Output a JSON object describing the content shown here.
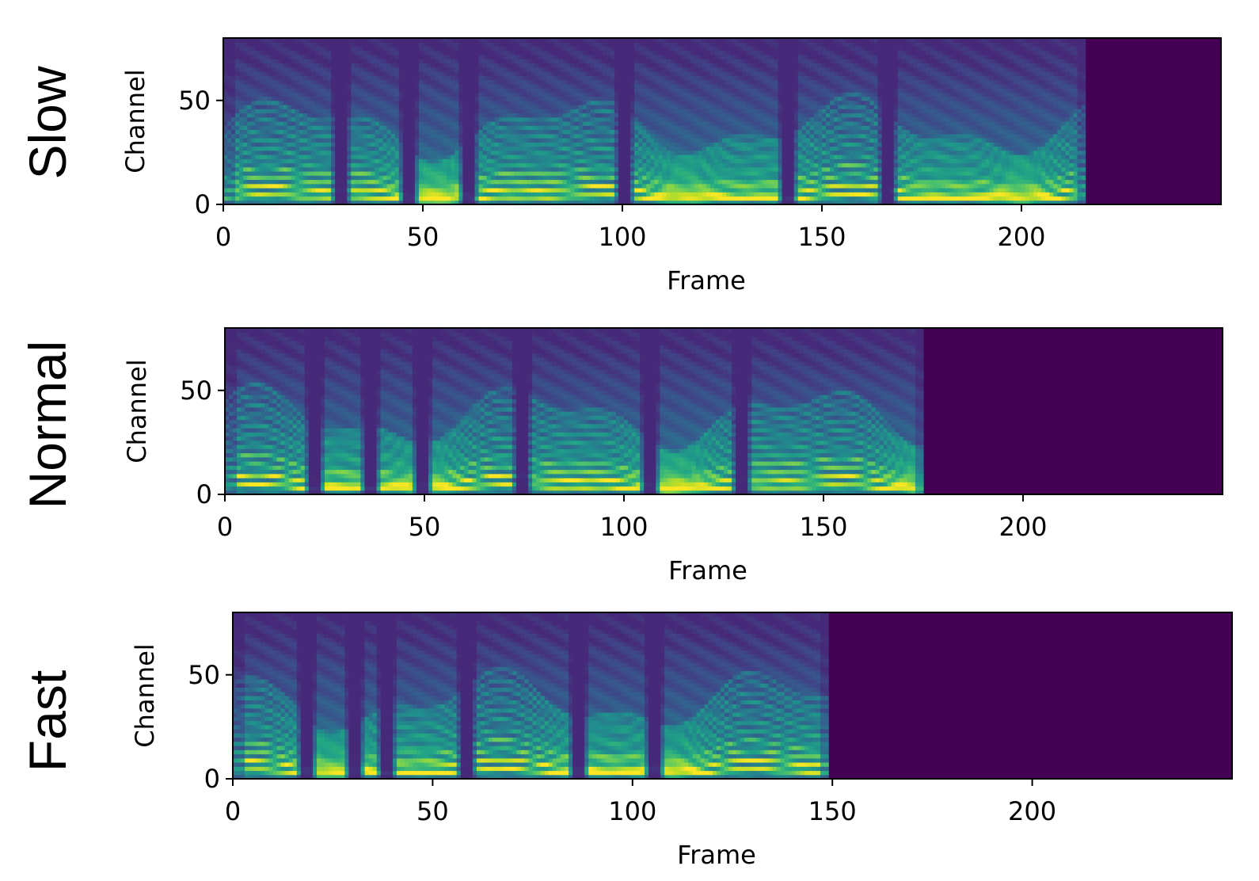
{
  "chart_data": [
    {
      "type": "heatmap",
      "row_label": "Slow",
      "xlabel": "Frame",
      "ylabel": "Channel",
      "xlim": [
        0,
        250
      ],
      "ylim": [
        0,
        80
      ],
      "x_ticks": [
        "0",
        "50",
        "100",
        "150",
        "200"
      ],
      "y_ticks": [
        "0",
        "50"
      ],
      "active_frames": 216,
      "silence_frames": [
        29,
        46,
        61,
        100,
        141,
        166
      ],
      "colormap": "viridis",
      "padding_color": "#440154"
    },
    {
      "type": "heatmap",
      "row_label": "Normal",
      "xlabel": "Frame",
      "ylabel": "Channel",
      "xlim": [
        0,
        250
      ],
      "ylim": [
        0,
        80
      ],
      "x_ticks": [
        "0",
        "50",
        "100",
        "150",
        "200"
      ],
      "y_ticks": [
        "0",
        "50"
      ],
      "active_frames": 175,
      "silence_frames": [
        22,
        36,
        49,
        74,
        106,
        129
      ],
      "colormap": "viridis",
      "padding_color": "#440154"
    },
    {
      "type": "heatmap",
      "row_label": "Fast",
      "xlabel": "Frame",
      "ylabel": "Channel",
      "xlim": [
        0,
        250
      ],
      "ylim": [
        0,
        80
      ],
      "x_ticks": [
        "0",
        "50",
        "100",
        "150",
        "200"
      ],
      "y_ticks": [
        "0",
        "50"
      ],
      "active_frames": 149,
      "silence_frames": [
        18,
        30,
        38,
        58,
        86,
        105
      ],
      "colormap": "viridis",
      "padding_color": "#440154"
    }
  ]
}
